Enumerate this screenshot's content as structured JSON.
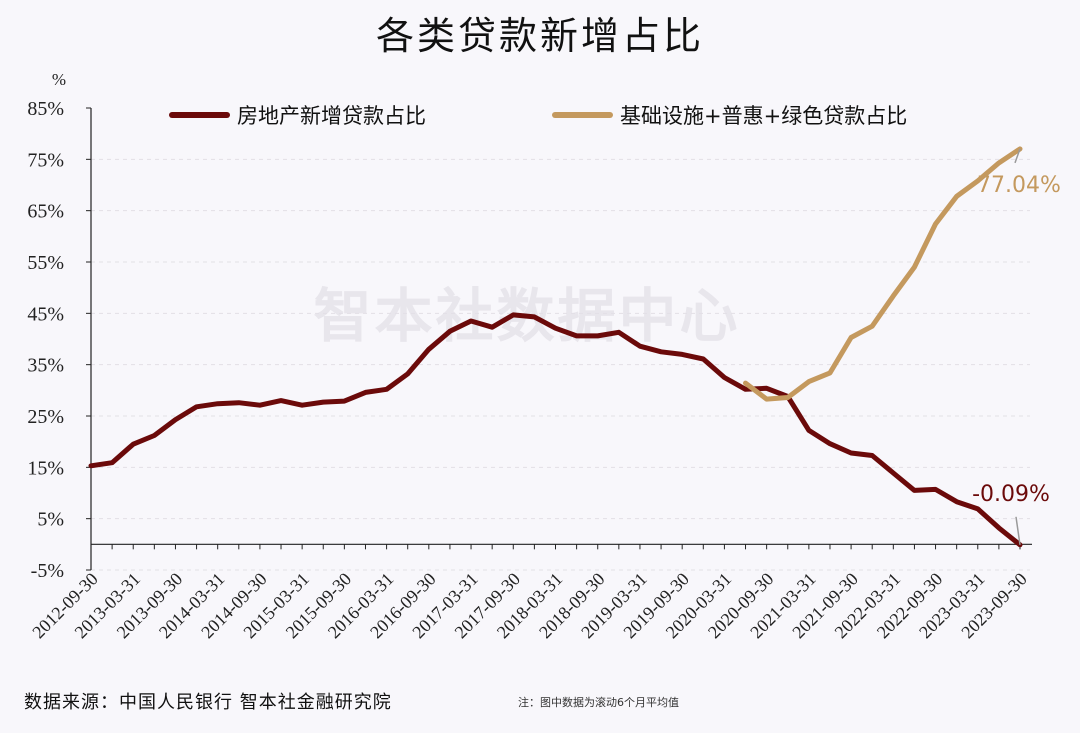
{
  "chart_data": {
    "type": "line",
    "title": "各类贷款新增占比",
    "yunit": "%",
    "ylim": [
      -5,
      85
    ],
    "yticks": [
      -5,
      5,
      15,
      25,
      35,
      45,
      55,
      65,
      75,
      85
    ],
    "ytick_labels": [
      "-5%",
      "5%",
      "15%",
      "25%",
      "35%",
      "45%",
      "55%",
      "65%",
      "75%",
      "85%"
    ],
    "x_labels": [
      "2012-09-30",
      "2013-03-31",
      "2013-09-30",
      "2014-03-31",
      "2014-09-30",
      "2015-03-31",
      "2015-09-30",
      "2016-03-31",
      "2016-09-30",
      "2017-03-31",
      "2017-09-30",
      "2018-03-31",
      "2018-09-30",
      "2019-03-31",
      "2019-09-30",
      "2020-03-31",
      "2020-09-30",
      "2021-03-31",
      "2021-09-30",
      "2022-03-31",
      "2022-09-30",
      "2023-03-31",
      "2023-09-30"
    ],
    "grid": true,
    "legend_position": "top",
    "series": [
      {
        "name": "房地产新增贷款占比",
        "color": "#6b0a0a",
        "start_index": 0,
        "values": [
          15.3,
          15.9,
          19.5,
          21.2,
          24.3,
          26.8,
          27.4,
          27.6,
          27.1,
          28.0,
          27.1,
          27.7,
          27.9,
          29.6,
          30.2,
          33.2,
          38.0,
          41.5,
          43.5,
          42.3,
          44.7,
          44.3,
          42.1,
          40.6,
          40.6,
          41.3,
          38.6,
          37.5,
          37.0,
          36.1,
          32.5,
          30.2,
          30.4,
          28.8,
          22.2,
          19.6,
          17.8,
          17.3,
          13.9,
          10.5,
          10.7,
          8.3,
          6.9,
          3.2,
          -0.09
        ],
        "end_label": "-0.09%"
      },
      {
        "name": "基础设施+普惠+绿色贷款占比",
        "color": "#c4995e",
        "start_index": 31,
        "values": [
          31.4,
          28.3,
          28.6,
          31.7,
          33.4,
          40.3,
          42.5,
          48.4,
          54.0,
          62.4,
          67.8,
          70.8,
          74.3,
          77.04
        ],
        "end_label": "77.04%"
      }
    ]
  },
  "watermark": "智本社数据中心",
  "source": "数据来源：中国人民银行  智本社金融研究院",
  "note": "注：图中数据为滚动6个月平均值"
}
